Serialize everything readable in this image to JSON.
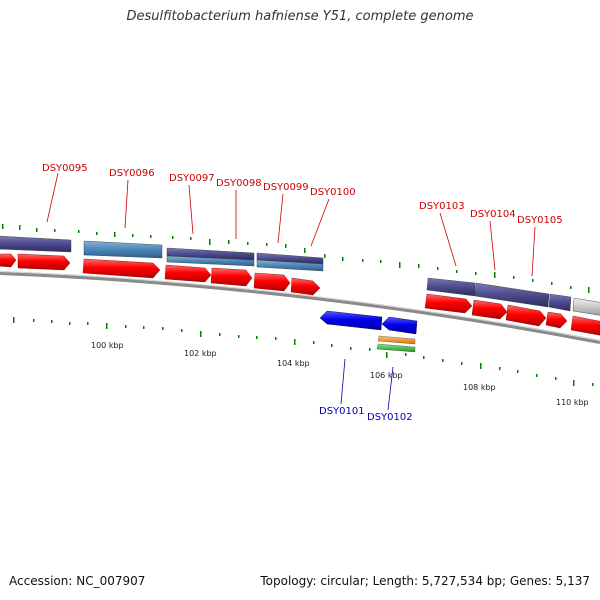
{
  "title": "Desulfitobacterium hafniense Y51, complete genome",
  "footer": {
    "accession": "Accession: NC_007907",
    "topology": "Topology: circular; Length: 5,727,534 bp; Genes: 5,137"
  },
  "gene_labels_top": [
    {
      "name": "DSY0095"
    },
    {
      "name": "DSY0096"
    },
    {
      "name": "DSY0097"
    },
    {
      "name": "DSY0098"
    },
    {
      "name": "DSY0099"
    },
    {
      "name": "DSY0100"
    },
    {
      "name": "DSY0103"
    },
    {
      "name": "DSY0104"
    },
    {
      "name": "DSY0105"
    }
  ],
  "gene_labels_bottom": [
    {
      "name": "DSY0101"
    },
    {
      "name": "DSY0102"
    }
  ],
  "kbp_ticks": [
    "100 kbp",
    "102 kbp",
    "104 kbp",
    "106 kbp",
    "108 kbp",
    "110 kbp"
  ],
  "colors": {
    "forward_gene": "#ff0000",
    "reverse_gene": "#0000ee",
    "label_forward": "#cc0000",
    "label_reverse": "#0000aa",
    "cog_purple": "#4c4a8c",
    "cog_steelblue": "#4d86b8",
    "cog_grey": "#c8c8c8",
    "rna_orange": "#f08a00",
    "rna_green": "#33bb33",
    "backbone": "#888888",
    "gc_tick": "#008000"
  }
}
